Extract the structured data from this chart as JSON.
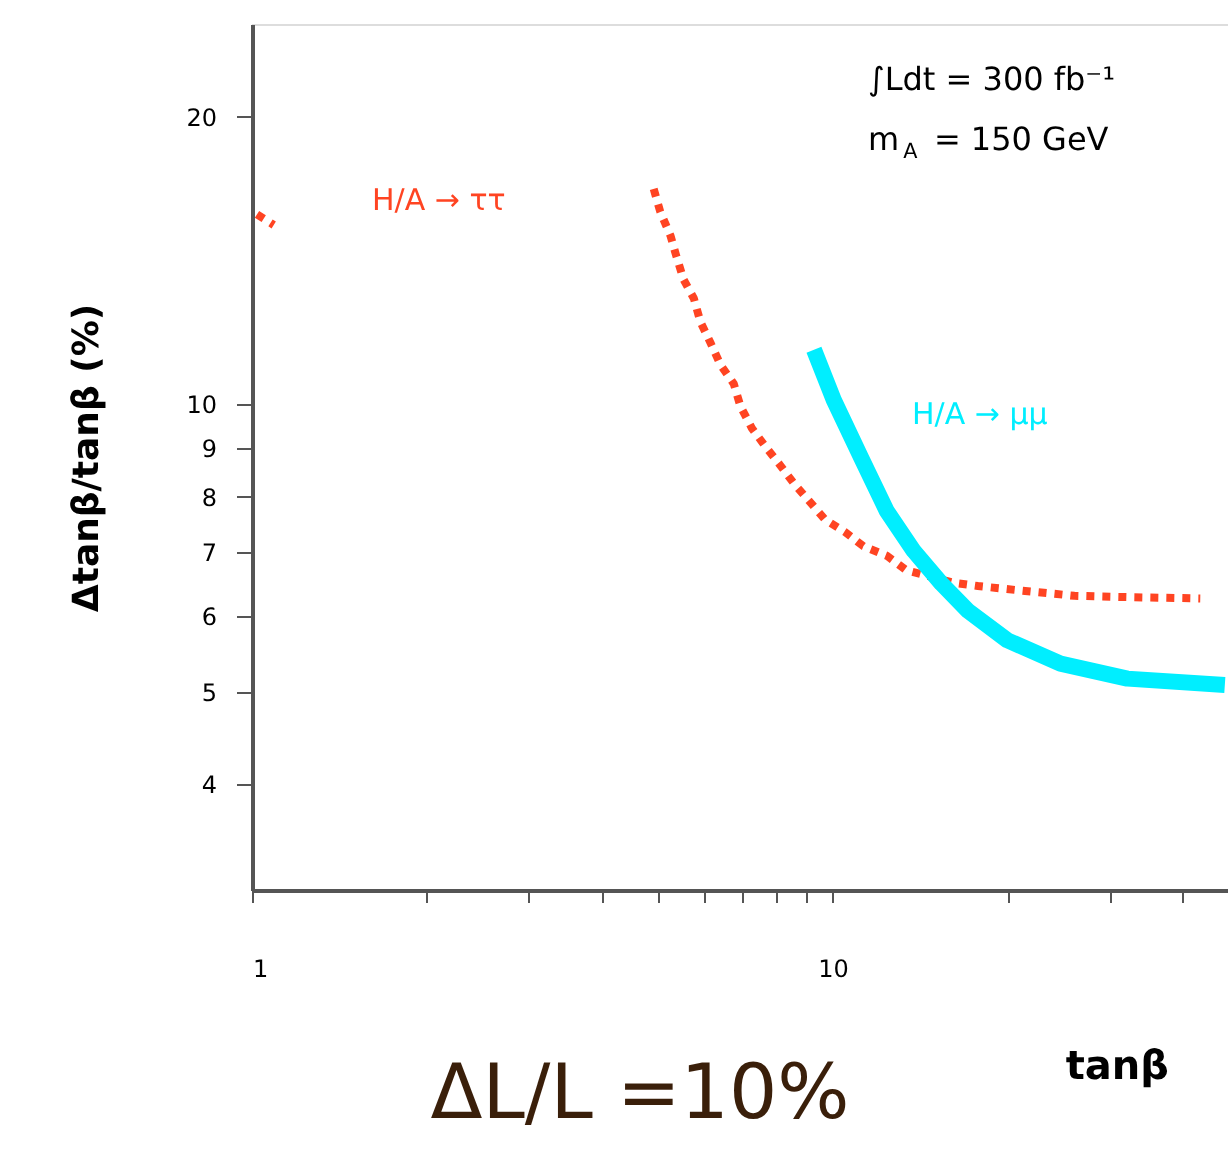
{
  "chart_data": {
    "type": "line",
    "xlabel": "tanβ",
    "ylabel": "Δtanβ/tanβ (%)",
    "log": "xy",
    "grid": false,
    "xlim": [
      1,
      48
    ],
    "xticks": [
      1,
      {
        "value": 2,
        "label": null
      },
      {
        "value": 3,
        "label": null
      },
      {
        "value": 4,
        "label": null
      },
      {
        "value": 5,
        "label": null
      },
      {
        "value": 6,
        "label": null
      },
      {
        "value": 7,
        "label": null
      },
      {
        "value": 8,
        "label": null
      },
      {
        "value": 9,
        "label": null
      },
      10,
      {
        "value": 20,
        "label": null
      },
      {
        "value": 30,
        "label": null
      },
      {
        "value": 40,
        "label": null
      }
    ],
    "ylim": [
      3.1,
      25
    ],
    "yticks": [
      4,
      5,
      6,
      7,
      8,
      9,
      10,
      20
    ],
    "annotations": [
      "∫Ldt = 300 fb⁻¹",
      "m$_{A}$ = 150 GeV",
      "ΔL/L =10%"
    ],
    "series": [
      {
        "name": "H/A → ττ",
        "color": "#ff4422",
        "line_style": "dotted",
        "x": [
          1.02,
          1.09,
          3.0,
          4.92,
          5.05,
          5.26,
          5.38,
          5.54,
          5.77,
          5.92,
          6.16,
          6.41,
          6.76,
          6.94,
          7.26,
          7.65,
          8.09,
          8.58,
          9.11,
          9.71,
          10.5,
          11.3,
          12.4,
          13.4,
          14.6,
          16.2,
          17.8,
          21.7,
          26.1,
          32.2,
          43.0
        ],
        "values": [
          15.8,
          15.4,
          null,
          16.8,
          15.9,
          15.0,
          14.3,
          13.5,
          12.9,
          12.2,
          11.6,
          11.0,
          10.5,
          9.95,
          9.44,
          9.04,
          8.66,
          8.26,
          7.92,
          7.57,
          7.35,
          7.1,
          6.94,
          6.7,
          6.61,
          6.5,
          6.45,
          6.37,
          6.3,
          6.28,
          6.26
        ]
      },
      {
        "name": "H/A → μμ",
        "color": "#00eeff",
        "line_style": "solid",
        "x": [
          9.29,
          10.05,
          11.2,
          12.4,
          13.8,
          15.4,
          17.1,
          20.0,
          24.7,
          32.2,
          47.4
        ],
        "values": [
          11.4,
          10.1,
          8.79,
          7.73,
          7.02,
          6.49,
          6.08,
          5.66,
          5.35,
          5.16,
          5.08
        ]
      }
    ]
  }
}
